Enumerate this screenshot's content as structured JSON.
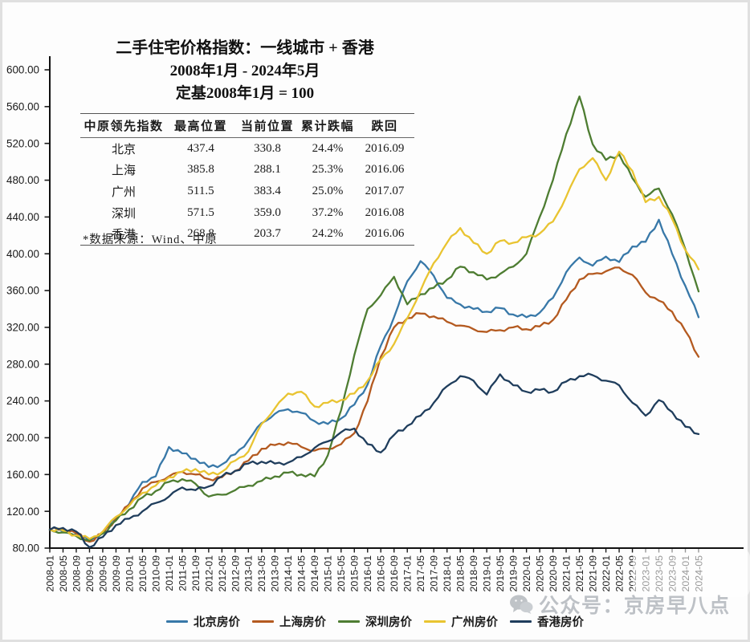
{
  "title": {
    "line1": "二手住宅价格指数：一线城市 + 香港",
    "line2": "2008年1月 - 2024年5月",
    "line3": "定基2008年1月 = 100"
  },
  "table": {
    "headers": [
      "中原领先指数",
      "最高位置",
      "当前位置",
      "累计跌幅",
      "跌回"
    ],
    "rows": [
      [
        "北京",
        "437.4",
        "330.8",
        "24.4%",
        "2016.09"
      ],
      [
        "上海",
        "385.8",
        "288.1",
        "25.3%",
        "2016.06"
      ],
      [
        "广州",
        "511.5",
        "383.4",
        "25.0%",
        "2017.07"
      ],
      [
        "深圳",
        "571.5",
        "359.0",
        "37.2%",
        "2016.08"
      ],
      [
        "香港",
        "268.8",
        "203.7",
        "24.2%",
        "2016.06"
      ]
    ],
    "footnote": "*数据来源：Wind、中原"
  },
  "watermark": {
    "text": "公众号：京房早八点",
    "icon": "wechat-icon"
  },
  "chart_data": {
    "type": "line",
    "title": "二手住宅价格指数：一线城市 + 香港",
    "subtitle": "2008年1月 - 2024年5月，定基2008年1月 = 100",
    "xlabel": "",
    "ylabel": "",
    "ylim": [
      80,
      600
    ],
    "ytick_step": 40,
    "y_tick_labels": [
      "80.00",
      "120.00",
      "160.00",
      "200.00",
      "240.00",
      "280.00",
      "320.00",
      "360.00",
      "400.00",
      "440.00",
      "480.00",
      "520.00",
      "560.00",
      "600.00"
    ],
    "grid": false,
    "legend_position": "bottom",
    "x_labels": [
      "2008-01",
      "2008-05",
      "2008-09",
      "2009-01",
      "2009-05",
      "2009-09",
      "2010-01",
      "2010-05",
      "2010-09",
      "2011-01",
      "2011-05",
      "2011-09",
      "2012-01",
      "2012-05",
      "2012-09",
      "2013-01",
      "2013-05",
      "2013-09",
      "2014-01",
      "2014-05",
      "2014-09",
      "2015-01",
      "2015-05",
      "2015-09",
      "2016-01",
      "2016-05",
      "2016-09",
      "2017-01",
      "2017-05",
      "2017-09",
      "2018-01",
      "2018-05",
      "2018-09",
      "2019-01",
      "2019-05",
      "2019-09",
      "2020-01",
      "2020-05",
      "2020-09",
      "2021-01",
      "2021-05",
      "2021-09",
      "2022-01",
      "2022-05",
      "2022-09",
      "2023-01",
      "2023-05",
      "2023-09",
      "2024-01",
      "2024-05"
    ],
    "series": [
      {
        "name": "北京房价",
        "color": "#3878a8",
        "values": [
          100,
          98,
          95,
          88,
          97,
          113,
          128,
          152,
          158,
          190,
          183,
          177,
          168,
          171,
          182,
          197,
          216,
          226,
          231,
          227,
          218,
          215,
          221,
          236,
          258,
          300,
          331,
          370,
          392,
          376,
          352,
          345,
          340,
          337,
          341,
          334,
          331,
          336,
          352,
          380,
          396,
          387,
          397,
          391,
          408,
          413,
          437,
          400,
          365,
          331
        ]
      },
      {
        "name": "上海房价",
        "color": "#b45a20",
        "values": [
          100,
          101,
          96,
          87,
          96,
          112,
          127,
          145,
          152,
          158,
          163,
          160,
          155,
          157,
          164,
          175,
          188,
          192,
          195,
          190,
          186,
          188,
          193,
          205,
          240,
          288,
          320,
          330,
          335,
          332,
          326,
          322,
          318,
          315,
          317,
          320,
          318,
          321,
          328,
          350,
          372,
          378,
          381,
          385,
          377,
          358,
          349,
          337,
          316,
          288
        ]
      },
      {
        "name": "深圳房价",
        "color": "#4e7d32",
        "values": [
          100,
          97,
          93,
          88,
          96,
          110,
          122,
          135,
          142,
          152,
          155,
          150,
          136,
          138,
          143,
          148,
          153,
          158,
          162,
          160,
          158,
          181,
          230,
          290,
          340,
          355,
          375,
          345,
          356,
          363,
          372,
          386,
          380,
          372,
          378,
          386,
          400,
          440,
          480,
          530,
          571,
          519,
          502,
          508,
          482,
          462,
          471,
          443,
          405,
          359
        ]
      },
      {
        "name": "广州房价",
        "color": "#e9c431",
        "values": [
          100,
          99,
          94,
          90,
          98,
          114,
          126,
          140,
          148,
          157,
          163,
          166,
          160,
          163,
          175,
          185,
          215,
          232,
          248,
          250,
          234,
          238,
          241,
          248,
          262,
          285,
          302,
          330,
          360,
          390,
          412,
          428,
          412,
          400,
          414,
          412,
          418,
          422,
          435,
          462,
          492,
          504,
          480,
          511,
          490,
          456,
          462,
          438,
          404,
          383
        ]
      },
      {
        "name": "香港房价",
        "color": "#1f3d5c",
        "values": [
          100,
          102,
          98,
          81,
          92,
          105,
          112,
          120,
          129,
          136,
          146,
          143,
          147,
          158,
          164,
          172,
          174,
          172,
          173,
          179,
          189,
          196,
          206,
          210,
          193,
          184,
          203,
          213,
          224,
          238,
          256,
          267,
          262,
          247,
          269,
          257,
          250,
          252,
          250,
          261,
          267,
          268,
          262,
          257,
          238,
          224,
          241,
          228,
          212,
          204
        ]
      }
    ]
  }
}
